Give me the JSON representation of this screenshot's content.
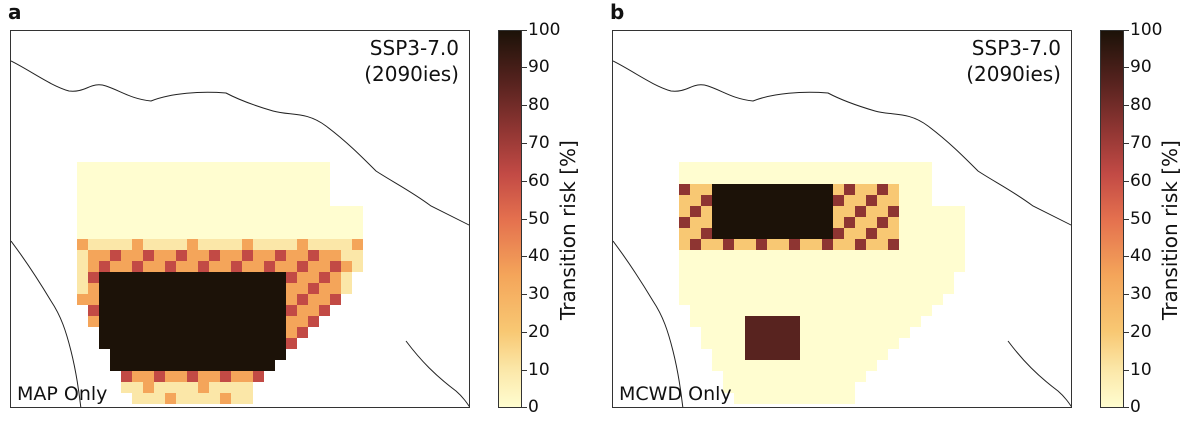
{
  "panels": [
    {
      "letter": "a",
      "scenario_line1": "SSP3-7.0",
      "scenario_line2": "(2090ies)",
      "corner_label": "MAP Only"
    },
    {
      "letter": "b",
      "scenario_line1": "SSP3-7.0",
      "scenario_line2": "(2090ies)",
      "corner_label": "MCWD Only"
    }
  ],
  "colorbar": {
    "label": "Transition risk [%]",
    "ticks": [
      "0",
      "10",
      "20",
      "30",
      "40",
      "50",
      "60",
      "70",
      "80",
      "90",
      "100"
    ],
    "range": [
      0,
      100
    ],
    "colors": [
      "#fffdd0",
      "#fbe7a8",
      "#f8c873",
      "#f4a55a",
      "#e4704e",
      "#c24a45",
      "#8e3532",
      "#58231f",
      "#1c1208"
    ]
  }
}
